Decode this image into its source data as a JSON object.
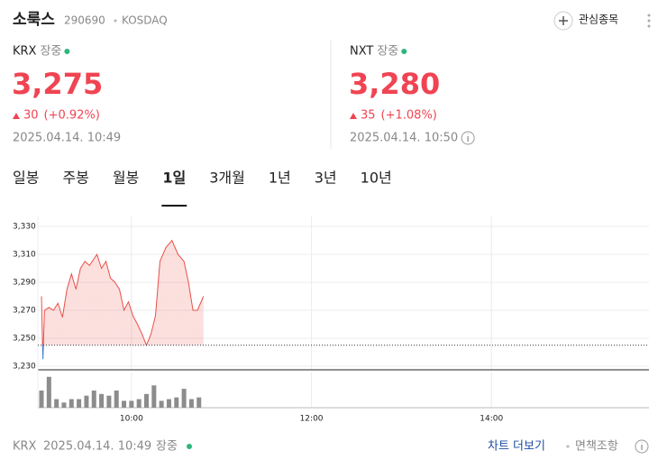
{
  "header": {
    "name": "소룩스",
    "code": "290690",
    "market": "KOSDAQ",
    "watch_button": "관심종목"
  },
  "quotes": [
    {
      "venue": "KRX",
      "status": "장중",
      "price": "3,275",
      "change": "30",
      "change_pct": "(+0.92%)",
      "time": "2025.04.14. 10:49"
    },
    {
      "venue": "NXT",
      "status": "장중",
      "price": "3,280",
      "change": "35",
      "change_pct": "(+1.08%)",
      "time": "2025.04.14. 10:50"
    }
  ],
  "tabs": [
    "일봉",
    "주봉",
    "월봉",
    "1일",
    "3개월",
    "1년",
    "3년",
    "10년"
  ],
  "active_tab": 3,
  "chart_data": {
    "type": "line",
    "x": [
      "09:00",
      "09:01",
      "09:02",
      "09:05",
      "09:08",
      "09:11",
      "09:14",
      "09:17",
      "09:20",
      "09:23",
      "09:26",
      "09:29",
      "09:32",
      "09:37",
      "09:40",
      "09:43",
      "09:46",
      "09:49",
      "09:52",
      "09:55",
      "09:58",
      "10:01",
      "10:04",
      "10:07",
      "10:10",
      "10:13",
      "10:16",
      "10:19",
      "10:23",
      "10:27",
      "10:31",
      "10:35",
      "10:38",
      "10:41",
      "10:44",
      "10:48"
    ],
    "series": [
      {
        "name": "KRX",
        "color": "#e8504a",
        "values": [
          3280,
          3235,
          3270,
          3272,
          3270,
          3275,
          3265,
          3285,
          3296,
          3285,
          3300,
          3305,
          3302,
          3310,
          3300,
          3305,
          3293,
          3290,
          3285,
          3270,
          3276,
          3266,
          3260,
          3253,
          3245,
          3253,
          3266,
          3305,
          3315,
          3320,
          3310,
          3305,
          3290,
          3270,
          3270,
          3280
        ]
      }
    ],
    "baseline": 3245,
    "below_color": "#3a7bd5",
    "xlim": [
      "09:00",
      "15:45"
    ],
    "xticks": [
      "10:00",
      "12:00",
      "14:00"
    ],
    "ylim": [
      3230,
      3330
    ],
    "yticks": [
      {
        "value": 3230,
        "label": "3,230"
      },
      {
        "value": 3250,
        "label": "3,250"
      },
      {
        "value": 3270,
        "label": "3,270"
      },
      {
        "value": 3290,
        "label": "3,290"
      },
      {
        "value": 3310,
        "label": "3,310"
      },
      {
        "value": 3330,
        "label": "3,330"
      }
    ],
    "grid": true,
    "volume": {
      "color": "#8c8c8c",
      "ylim": [
        0,
        40
      ],
      "x": [
        "09:00",
        "09:05",
        "09:10",
        "09:15",
        "09:20",
        "09:25",
        "09:30",
        "09:35",
        "09:40",
        "09:45",
        "09:50",
        "09:55",
        "10:00",
        "10:05",
        "10:10",
        "10:15",
        "10:20",
        "10:25",
        "10:30",
        "10:35",
        "10:40",
        "10:45"
      ],
      "values": [
        20,
        36,
        10,
        6,
        10,
        10,
        14,
        20,
        16,
        14,
        20,
        8,
        8,
        10,
        16,
        26,
        8,
        10,
        12,
        22,
        10,
        12
      ]
    }
  },
  "footer": {
    "venue": "KRX",
    "time": "2025.04.14. 10:49",
    "status": "장중",
    "more": "차트 더보기",
    "disclaimer": "면책조항"
  }
}
